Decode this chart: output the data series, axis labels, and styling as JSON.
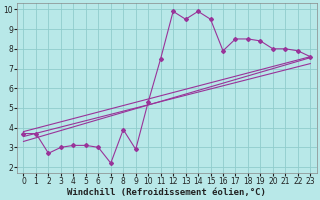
{
  "xlabel": "Windchill (Refroidissement éolien,°C)",
  "bg_color": "#b8e8e8",
  "grid_color": "#90cccc",
  "line_color": "#993399",
  "xlim": [
    -0.5,
    23.5
  ],
  "ylim": [
    1.7,
    10.3
  ],
  "xticks": [
    0,
    1,
    2,
    3,
    4,
    5,
    6,
    7,
    8,
    9,
    10,
    11,
    12,
    13,
    14,
    15,
    16,
    17,
    18,
    19,
    20,
    21,
    22,
    23
  ],
  "yticks": [
    2,
    3,
    4,
    5,
    6,
    7,
    8,
    9,
    10
  ],
  "series1_x": [
    0,
    1,
    2,
    3,
    4,
    5,
    6,
    7,
    8,
    9,
    10,
    11,
    12,
    13,
    14,
    15,
    16,
    17,
    18,
    19,
    20,
    21,
    22,
    23
  ],
  "series1_y": [
    3.7,
    3.7,
    2.7,
    3.0,
    3.1,
    3.1,
    3.0,
    2.2,
    3.9,
    2.9,
    5.3,
    7.5,
    9.9,
    9.5,
    9.9,
    9.5,
    7.9,
    8.5,
    8.5,
    8.4,
    8.0,
    8.0,
    7.9,
    7.6
  ],
  "trend1_x": [
    0,
    23
  ],
  "trend1_y": [
    3.8,
    7.6
  ],
  "trend2_x": [
    0,
    23
  ],
  "trend2_y": [
    3.55,
    7.25
  ],
  "trend3_x": [
    0,
    23
  ],
  "trend3_y": [
    3.3,
    7.55
  ],
  "xlabel_fontsize": 6.5,
  "tick_fontsize": 5.5,
  "marker": "D",
  "markersize": 2.0,
  "linewidth": 0.8,
  "spine_color": "#888888",
  "label_color": "#222222"
}
